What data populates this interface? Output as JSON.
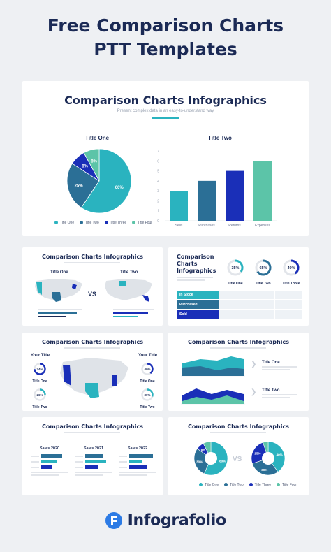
{
  "headline": {
    "line1": "Free Comparison Charts",
    "line2": "PTT Templates"
  },
  "colors": {
    "navy": "#1b2a55",
    "teal": "#2ab3bf",
    "steel": "#2b6f96",
    "blue": "#1a2fb8",
    "mint": "#5cc4a8"
  },
  "hero": {
    "title": "Comparison Charts Infographics",
    "subtitle": "Present complex data in an easy-to-understand way",
    "pie_title": "Title One",
    "bar_title": "Title Two"
  },
  "chart_data": [
    {
      "type": "pie",
      "title": "Title One",
      "categories": [
        "Title One",
        "Title Two",
        "Title Three",
        "Title Four"
      ],
      "values": [
        60,
        25,
        8,
        8
      ],
      "labels": [
        "60%",
        "25%",
        "8%",
        "8%"
      ],
      "legend_position": "bottom"
    },
    {
      "type": "bar",
      "title": "Title Two",
      "categories": [
        "Sells",
        "Purchases",
        "Returns",
        "Expenses"
      ],
      "values": [
        3,
        4,
        5,
        6
      ],
      "ylim": [
        0,
        7
      ],
      "yticks": [
        "0",
        "1",
        "2",
        "3",
        "4",
        "5",
        "6",
        "7"
      ]
    }
  ],
  "cards": {
    "map_compare": {
      "title": "Comparison Charts Infographics",
      "left": "Title One",
      "right": "Title Two",
      "vs": "VS"
    },
    "table_card": {
      "title_line1": "Comparison",
      "title_line2": "Charts",
      "title_line3": "Infographics",
      "donuts": [
        {
          "value": "35%",
          "label": "Title One"
        },
        {
          "value": "65%",
          "label": "Title Two"
        },
        {
          "value": "40%",
          "label": "Title Three"
        }
      ],
      "rows": [
        "In Stock",
        "Purchased",
        "Sold"
      ]
    },
    "us_map": {
      "title": "Comparison Charts Infographics",
      "left_title": "Your Title",
      "right_title": "Your Title",
      "stats_left": [
        {
          "value": "74%",
          "label": "Title One"
        },
        {
          "value": "26%",
          "label": "Title Two"
        }
      ],
      "stats_right": [
        {
          "value": "40%",
          "label": "Title One"
        },
        {
          "value": "30%",
          "label": "Title Two"
        }
      ]
    },
    "area": {
      "title": "Comparison Charts Infographics",
      "items": [
        "Title One",
        "Title Two"
      ]
    },
    "sales": {
      "title": "Comparison Charts Infographics",
      "columns": [
        "Sales 2020",
        "Sales 2021",
        "Sales 2022"
      ]
    },
    "donut_vs": {
      "title": "Comparison Charts Infographics",
      "vs": "VS",
      "legend": [
        "Title One",
        "Title Two",
        "Title Three",
        "Title Four"
      ],
      "left_labels": [
        "60%",
        "30%",
        "8%"
      ],
      "right_labels": [
        "40%",
        "30%",
        "25%"
      ]
    }
  },
  "brand": {
    "name": "Infografolio",
    "icon": "infografolio-logo-icon"
  }
}
